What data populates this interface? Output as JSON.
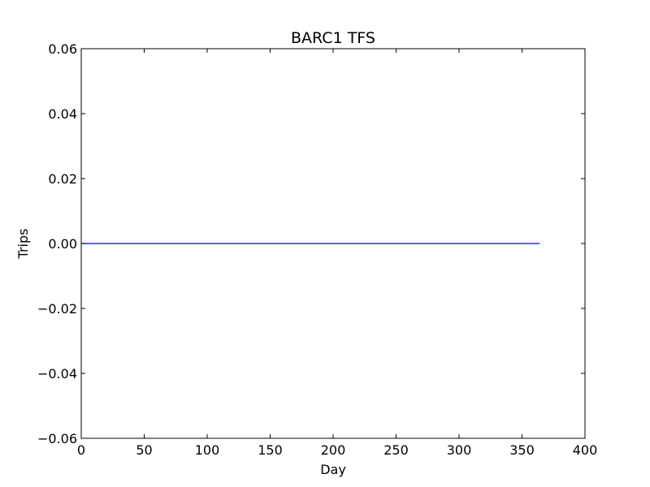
{
  "chart_data": {
    "type": "line",
    "title": "BARC1 TFS",
    "xlabel": "Day",
    "ylabel": "Trips",
    "xlim": [
      0,
      400
    ],
    "ylim": [
      -0.06,
      0.06
    ],
    "xticks": [
      0,
      50,
      100,
      150,
      200,
      250,
      300,
      350,
      400
    ],
    "yticks": [
      0.06,
      0.04,
      0.02,
      0.0,
      -0.02,
      -0.04,
      -0.06
    ],
    "xtick_labels": [
      "0",
      "50",
      "100",
      "150",
      "200",
      "250",
      "300",
      "350",
      "400"
    ],
    "ytick_labels": [
      "0.06",
      "0.04",
      "0.02",
      "0.00",
      "−0.02",
      "−0.04",
      "−0.06"
    ],
    "grid": false,
    "series": [
      {
        "color": "#0000ff",
        "x": [
          0,
          364
        ],
        "y": [
          0,
          0
        ]
      }
    ]
  }
}
